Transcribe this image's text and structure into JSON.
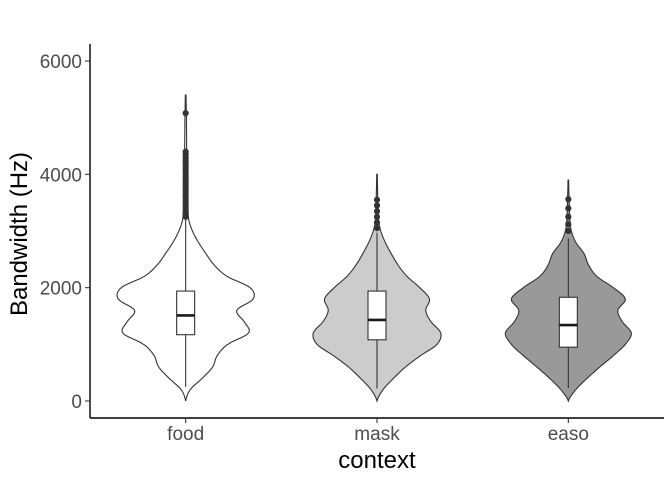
{
  "chart_data": {
    "type": "violin",
    "title": "",
    "xlabel": "context",
    "ylabel": "Bandwidth (Hz)",
    "ylim": [
      -300,
      6300
    ],
    "yticks": [
      0,
      2000,
      4000,
      6000
    ],
    "grid": false,
    "legend": "none",
    "categories": [
      "food",
      "mask",
      "easo"
    ],
    "fill_colors": [
      "#ffffff",
      "#cccccc",
      "#999999"
    ],
    "series": [
      {
        "category": "food",
        "density_min": 0,
        "density_max": 5400,
        "density": [
          [
            0,
            0
          ],
          [
            200,
            0.06
          ],
          [
            400,
            0.22
          ],
          [
            600,
            0.36
          ],
          [
            800,
            0.42
          ],
          [
            1000,
            0.56
          ],
          [
            1200,
            0.84
          ],
          [
            1400,
            0.78
          ],
          [
            1600,
            0.68
          ],
          [
            1800,
            0.9
          ],
          [
            2000,
            0.86
          ],
          [
            2200,
            0.55
          ],
          [
            2400,
            0.38
          ],
          [
            2600,
            0.27
          ],
          [
            2800,
            0.17
          ],
          [
            3000,
            0.09
          ],
          [
            3200,
            0.04
          ],
          [
            3600,
            0.02
          ],
          [
            4200,
            0.015
          ],
          [
            5000,
            0.01
          ],
          [
            5400,
            0.005
          ]
        ],
        "box": {
          "q1": 1170,
          "median": 1510,
          "q3": 1940,
          "whisker_low": 250,
          "whisker_high": 3200
        },
        "outliers": [
          3250,
          3300,
          3350,
          3400,
          3450,
          3500,
          3550,
          3600,
          3650,
          3700,
          3750,
          3800,
          3850,
          3900,
          3950,
          4000,
          4050,
          4100,
          4150,
          4200,
          4250,
          4300,
          4350,
          4400,
          5080
        ]
      },
      {
        "category": "mask",
        "density_min": 0,
        "density_max": 4000,
        "density": [
          [
            0,
            0
          ],
          [
            200,
            0.08
          ],
          [
            400,
            0.22
          ],
          [
            600,
            0.38
          ],
          [
            800,
            0.58
          ],
          [
            1000,
            0.8
          ],
          [
            1200,
            0.85
          ],
          [
            1400,
            0.72
          ],
          [
            1600,
            0.65
          ],
          [
            1800,
            0.7
          ],
          [
            2000,
            0.57
          ],
          [
            2200,
            0.4
          ],
          [
            2400,
            0.28
          ],
          [
            2600,
            0.19
          ],
          [
            2800,
            0.11
          ],
          [
            3000,
            0.05
          ],
          [
            3200,
            0.02
          ],
          [
            3600,
            0.01
          ],
          [
            4000,
            0.004
          ]
        ],
        "box": {
          "q1": 1080,
          "median": 1430,
          "q3": 1940,
          "whisker_low": 220,
          "whisker_high": 2970
        },
        "outliers": [
          3050,
          3150,
          3250,
          3350,
          3450,
          3550
        ]
      },
      {
        "category": "easo",
        "density_min": 0,
        "density_max": 3900,
        "density": [
          [
            0,
            0
          ],
          [
            200,
            0.1
          ],
          [
            400,
            0.25
          ],
          [
            600,
            0.42
          ],
          [
            800,
            0.6
          ],
          [
            1000,
            0.76
          ],
          [
            1200,
            0.84
          ],
          [
            1400,
            0.72
          ],
          [
            1600,
            0.66
          ],
          [
            1800,
            0.76
          ],
          [
            2000,
            0.6
          ],
          [
            2200,
            0.38
          ],
          [
            2400,
            0.27
          ],
          [
            2600,
            0.21
          ],
          [
            2800,
            0.1
          ],
          [
            3000,
            0.04
          ],
          [
            3200,
            0.02
          ],
          [
            3600,
            0.01
          ],
          [
            3900,
            0.004
          ]
        ],
        "box": {
          "q1": 950,
          "median": 1340,
          "q3": 1830,
          "whisker_low": 230,
          "whisker_high": 2870
        },
        "outliers": [
          3000,
          3120,
          3250,
          3400,
          3560
        ]
      }
    ]
  }
}
